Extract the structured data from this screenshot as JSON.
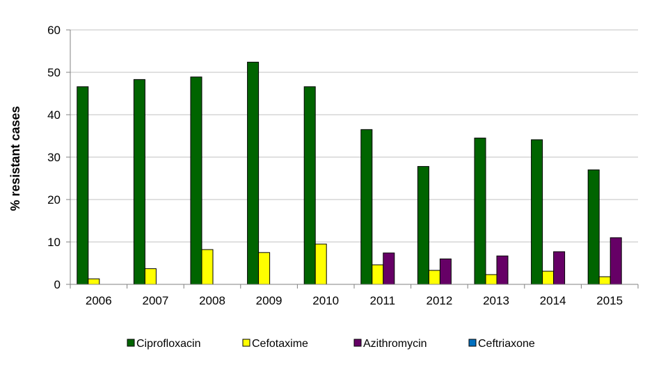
{
  "chart_data": {
    "type": "bar",
    "title": "",
    "xlabel": "",
    "ylabel": "% resistant cases",
    "ylim": [
      0,
      60
    ],
    "yticks": [
      0,
      10,
      20,
      30,
      40,
      50,
      60
    ],
    "grid": true,
    "legend_position": "bottom",
    "categories": [
      "2006",
      "2007",
      "2008",
      "2009",
      "2010",
      "2011",
      "2012",
      "2013",
      "2014",
      "2015"
    ],
    "series": [
      {
        "name": "Ciprofloxacin",
        "color": "#006400",
        "values": [
          46.6,
          48.3,
          48.9,
          52.4,
          46.6,
          36.5,
          27.8,
          34.5,
          34.1,
          27.0
        ]
      },
      {
        "name": "Cefotaxime",
        "color": "#FFFF00",
        "values": [
          1.3,
          3.7,
          8.2,
          7.5,
          9.5,
          4.6,
          3.3,
          2.3,
          3.1,
          1.8
        ]
      },
      {
        "name": "Azithromycin",
        "color": "#660066",
        "values": [
          null,
          null,
          null,
          null,
          null,
          7.4,
          6.0,
          6.7,
          7.7,
          11.0
        ]
      },
      {
        "name": "Ceftriaxone",
        "color": "#0070C0",
        "values": [
          null,
          null,
          null,
          null,
          null,
          null,
          null,
          null,
          null,
          null
        ]
      }
    ]
  }
}
